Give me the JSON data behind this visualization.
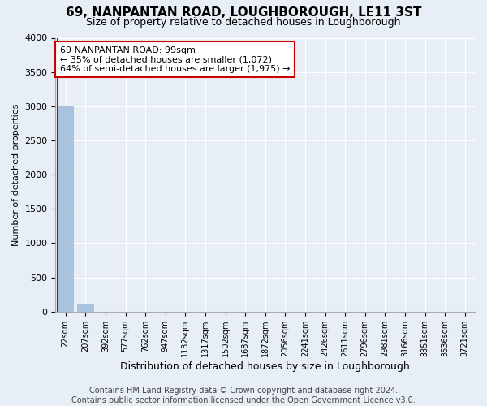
{
  "title": "69, NANPANTAN ROAD, LOUGHBOROUGH, LE11 3ST",
  "subtitle": "Size of property relative to detached houses in Loughborough",
  "xlabel": "Distribution of detached houses by size in Loughborough",
  "ylabel": "Number of detached properties",
  "categories": [
    "22sqm",
    "207sqm",
    "392sqm",
    "577sqm",
    "762sqm",
    "947sqm",
    "1132sqm",
    "1317sqm",
    "1502sqm",
    "1687sqm",
    "1872sqm",
    "2056sqm",
    "2241sqm",
    "2426sqm",
    "2611sqm",
    "2796sqm",
    "2981sqm",
    "3166sqm",
    "3351sqm",
    "3536sqm",
    "3721sqm"
  ],
  "values": [
    3000,
    110,
    0,
    0,
    0,
    0,
    0,
    0,
    0,
    0,
    0,
    0,
    0,
    0,
    0,
    0,
    0,
    0,
    0,
    0,
    0
  ],
  "bar_color": "#aac4e0",
  "highlight_color": "#cc0000",
  "highlight_index": 0,
  "ylim": [
    0,
    4000
  ],
  "yticks": [
    0,
    500,
    1000,
    1500,
    2000,
    2500,
    3000,
    3500,
    4000
  ],
  "annotation_box_text": "69 NANPANTAN ROAD: 99sqm\n← 35% of detached houses are smaller (1,072)\n64% of semi-detached houses are larger (1,975) →",
  "footer_line1": "Contains HM Land Registry data © Crown copyright and database right 2024.",
  "footer_line2": "Contains public sector information licensed under the Open Government Licence v3.0.",
  "background_color": "#e8eef5",
  "plot_bg_color": "#e8eef5",
  "grid_color": "#ffffff",
  "title_fontsize": 11,
  "subtitle_fontsize": 9,
  "annotation_fontsize": 8,
  "footer_fontsize": 7,
  "ylabel_fontsize": 8,
  "xlabel_fontsize": 9,
  "tick_fontsize": 7
}
